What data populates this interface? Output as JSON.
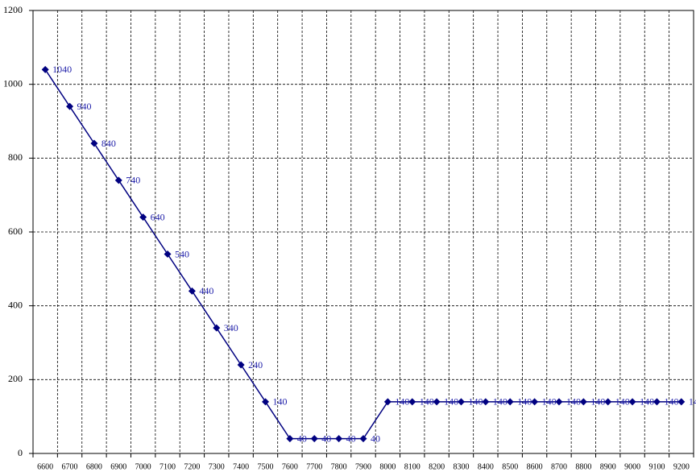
{
  "chart_data": {
    "type": "line",
    "categories": [
      "6600",
      "6700",
      "6800",
      "6900",
      "7000",
      "7100",
      "7200",
      "7300",
      "7400",
      "7500",
      "7600",
      "7700",
      "7800",
      "7900",
      "8000",
      "8100",
      "8200",
      "8300",
      "8400",
      "8500",
      "8600",
      "8700",
      "8800",
      "8900",
      "9000",
      "9100",
      "9200"
    ],
    "values": [
      1040,
      940,
      840,
      740,
      640,
      540,
      440,
      340,
      240,
      140,
      40,
      40,
      40,
      40,
      140,
      140,
      140,
      140,
      140,
      140,
      140,
      140,
      140,
      140,
      140,
      140,
      140
    ],
    "color": "#000080",
    "label_color": "#1c1ca8",
    "ylim": [
      0,
      1200
    ],
    "yticks": [
      0,
      200,
      400,
      600,
      800,
      1000,
      1200
    ],
    "grid": true,
    "data_labels": true
  }
}
